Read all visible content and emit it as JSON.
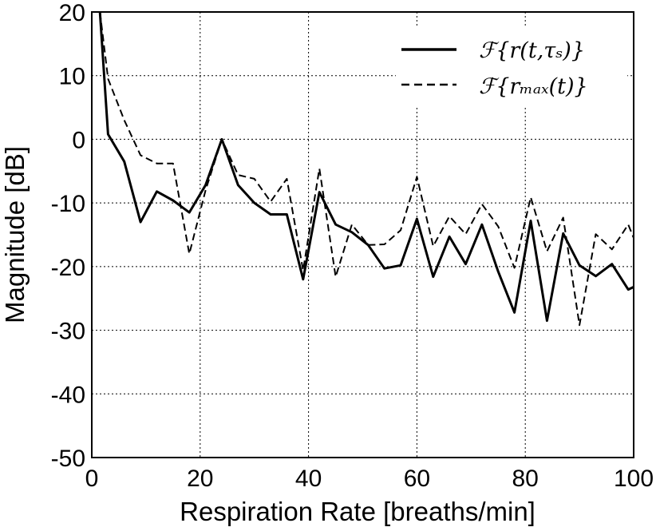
{
  "chart_data": {
    "type": "line",
    "xlabel": "Respiration Rate [breaths/min]",
    "ylabel": "Magnitude [dB]",
    "xlim": [
      0,
      100
    ],
    "ylim": [
      -50,
      20
    ],
    "xticks": [
      0,
      20,
      40,
      60,
      80,
      100
    ],
    "yticks": [
      20,
      10,
      0,
      -10,
      -20,
      -30,
      -40,
      -50
    ],
    "xtick_labels": [
      "0",
      "20",
      "40",
      "60",
      "80",
      "100"
    ],
    "ytick_labels": [
      "20",
      "10",
      "0",
      "-10",
      "-20",
      "-30",
      "-40",
      "-50"
    ],
    "grid": true,
    "legend_position": "top-right",
    "series": [
      {
        "name": "ℱ{r(t,τₛ)}",
        "style": "solid",
        "color": "#000000",
        "x": [
          1.5,
          3,
          6,
          9,
          12,
          15,
          18,
          21,
          24,
          27,
          30,
          33,
          36,
          39,
          42,
          45,
          48,
          51,
          54,
          57,
          60,
          63,
          66,
          69,
          72,
          75,
          78,
          81,
          84,
          87,
          90,
          93,
          96,
          99,
          100
        ],
        "y": [
          20,
          0.8,
          -3.5,
          -13,
          -8.2,
          -9.6,
          -11.5,
          -7.2,
          0,
          -7.2,
          -10,
          -11.8,
          -11.8,
          -22,
          -8.3,
          -13.4,
          -14.6,
          -16.6,
          -20.3,
          -19.8,
          -12.5,
          -21.6,
          -15.3,
          -19.6,
          -13.4,
          -20.8,
          -27.2,
          -12.8,
          -28.5,
          -14.8,
          -19.8,
          -21.5,
          -19.6,
          -23.6,
          -23.2
        ]
      },
      {
        "name": "ℱ{rₘₐₓ(t)}",
        "style": "dashed",
        "color": "#000000",
        "x": [
          1.5,
          3,
          6,
          9,
          12,
          15,
          18,
          21,
          24,
          27,
          30,
          33,
          36,
          39,
          42,
          45,
          48,
          51,
          54,
          57,
          60,
          63,
          66,
          69,
          72,
          75,
          78,
          81,
          84,
          87,
          90,
          93,
          96,
          99,
          100
        ],
        "y": [
          20,
          9.5,
          3,
          -2.5,
          -3.8,
          -3.8,
          -18,
          -8,
          0,
          -5.6,
          -6.2,
          -9.8,
          -6.2,
          -20.6,
          -4.6,
          -21.6,
          -13.4,
          -16.6,
          -16.5,
          -14.3,
          -5.9,
          -16.8,
          -12.1,
          -14.9,
          -10.2,
          -13.7,
          -20.2,
          -9.1,
          -17.6,
          -12.3,
          -29.2,
          -14.9,
          -17.3,
          -13.4,
          -15.5
        ]
      }
    ]
  },
  "legend": {
    "items": [
      {
        "label": "ℱ{r(t,τₛ)}",
        "style": "solid"
      },
      {
        "label": "ℱ{rₘₐₓ(t)}",
        "style": "dashed"
      }
    ]
  }
}
